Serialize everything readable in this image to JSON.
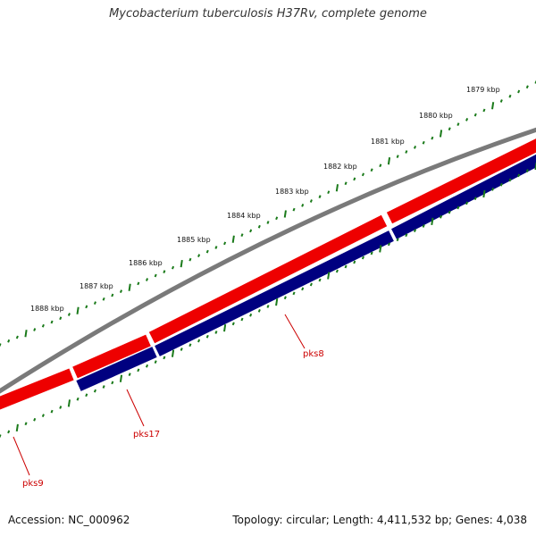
{
  "title": "Mycobacterium tuberculosis H37Rv, complete genome",
  "footer": {
    "accession": "Accession: NC_000962",
    "summary": "Topology: circular; Length: 4,411,532 bp; Genes: 4,038"
  },
  "colors": {
    "backbone": "#7f7f7f",
    "forward_gene": "#ee0000",
    "reverse_gene": "#000080",
    "tick": "#1a7a1a",
    "label": "#cc0000"
  },
  "ticks": [
    {
      "label": "1879 kbp"
    },
    {
      "label": "1880 kbp"
    },
    {
      "label": "1881 kbp"
    },
    {
      "label": "1882 kbp"
    },
    {
      "label": "1883 kbp"
    },
    {
      "label": "1884 kbp"
    },
    {
      "label": "1885 kbp"
    },
    {
      "label": "1886 kbp"
    },
    {
      "label": "1887 kbp"
    },
    {
      "label": "1888 kbp"
    }
  ],
  "genes": [
    {
      "name": "pks8",
      "strand": "reverse"
    },
    {
      "name": "pks17",
      "strand": "reverse"
    },
    {
      "name": "pks9",
      "strand": "forward"
    }
  ]
}
